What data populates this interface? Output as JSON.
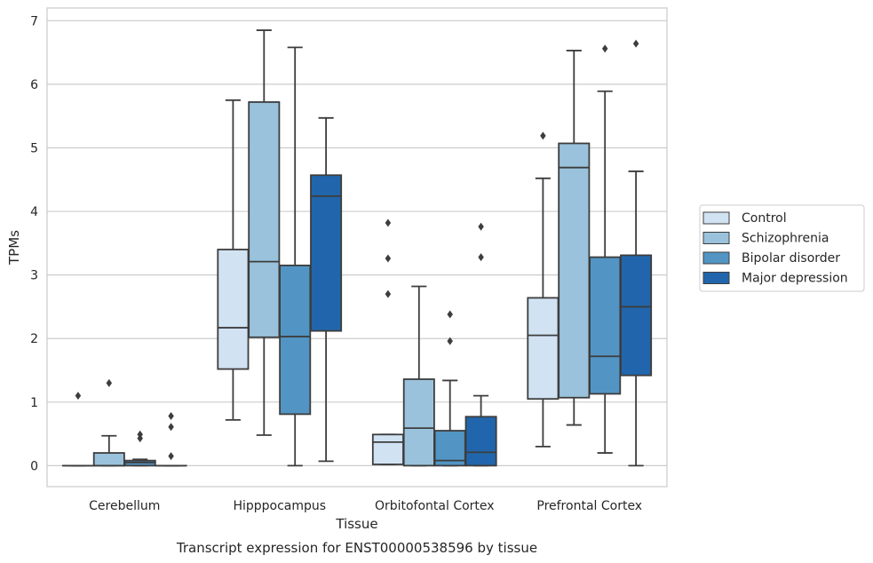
{
  "chart_data": {
    "type": "box",
    "xlabel": "Tissue",
    "ylabel": "TPMs",
    "caption": "Transcript expression for ENST00000538596 by tissue",
    "ylim": [
      -0.33,
      7.2
    ],
    "y_ticks": [
      0,
      1,
      2,
      3,
      4,
      5,
      6,
      7
    ],
    "grid": "horizontal",
    "legend_position": "right",
    "categories": [
      "Cerebellum",
      "Hipppocampus",
      "Orbitofontal Cortex",
      "Prefrontal Cortex"
    ],
    "series": [
      {
        "name": "Control",
        "color": "#d1e2f3",
        "boxes": [
          {
            "min": 0,
            "q1": 0,
            "median": 0,
            "q3": 0,
            "max": 0,
            "outliers": [
              1.1
            ]
          },
          {
            "min": 0.72,
            "q1": 1.52,
            "median": 2.17,
            "q3": 3.4,
            "max": 5.75,
            "outliers": []
          },
          {
            "min": 0.02,
            "q1": 0.02,
            "median": 0.37,
            "q3": 0.49,
            "max": 0.49,
            "outliers": [
              2.7,
              3.26,
              3.82
            ]
          },
          {
            "min": 0.3,
            "q1": 1.05,
            "median": 2.05,
            "q3": 2.64,
            "max": 4.52,
            "outliers": [
              5.19
            ]
          }
        ]
      },
      {
        "name": "Schizophrenia",
        "color": "#9ac2dc",
        "boxes": [
          {
            "min": 0,
            "q1": 0,
            "median": 0,
            "q3": 0.2,
            "max": 0.47,
            "outliers": [
              1.3
            ]
          },
          {
            "min": 0.48,
            "q1": 2.02,
            "median": 3.21,
            "q3": 5.72,
            "max": 6.85,
            "outliers": []
          },
          {
            "min": 0,
            "q1": 0,
            "median": 0.59,
            "q3": 1.36,
            "max": 2.82,
            "outliers": []
          },
          {
            "min": 0.64,
            "q1": 1.07,
            "median": 4.69,
            "q3": 5.07,
            "max": 6.53,
            "outliers": []
          }
        ]
      },
      {
        "name": "Bipolar disorder",
        "color": "#5295c4",
        "boxes": [
          {
            "min": 0,
            "q1": 0,
            "median": 0.05,
            "q3": 0.08,
            "max": 0.1,
            "outliers": [
              0.43,
              0.49
            ]
          },
          {
            "min": 0,
            "q1": 0.81,
            "median": 2.03,
            "q3": 3.15,
            "max": 6.58,
            "outliers": []
          },
          {
            "min": 0,
            "q1": 0,
            "median": 0.08,
            "q3": 0.55,
            "max": 1.34,
            "outliers": [
              1.96,
              2.38
            ]
          },
          {
            "min": 0.2,
            "q1": 1.13,
            "median": 1.72,
            "q3": 3.28,
            "max": 5.89,
            "outliers": [
              6.56
            ]
          }
        ]
      },
      {
        "name": "Major depression",
        "color": "#2166ac",
        "boxes": [
          {
            "min": 0,
            "q1": 0,
            "median": 0,
            "q3": 0,
            "max": 0,
            "outliers": [
              0.15,
              0.61,
              0.78
            ]
          },
          {
            "min": 0.07,
            "q1": 2.12,
            "median": 4.24,
            "q3": 4.57,
            "max": 5.47,
            "outliers": []
          },
          {
            "min": 0,
            "q1": 0,
            "median": 0.21,
            "q3": 0.77,
            "max": 1.1,
            "outliers": [
              3.28,
              3.76
            ]
          },
          {
            "min": 0,
            "q1": 1.42,
            "median": 2.5,
            "q3": 3.31,
            "max": 4.63,
            "outliers": [
              6.64
            ]
          }
        ]
      }
    ]
  }
}
